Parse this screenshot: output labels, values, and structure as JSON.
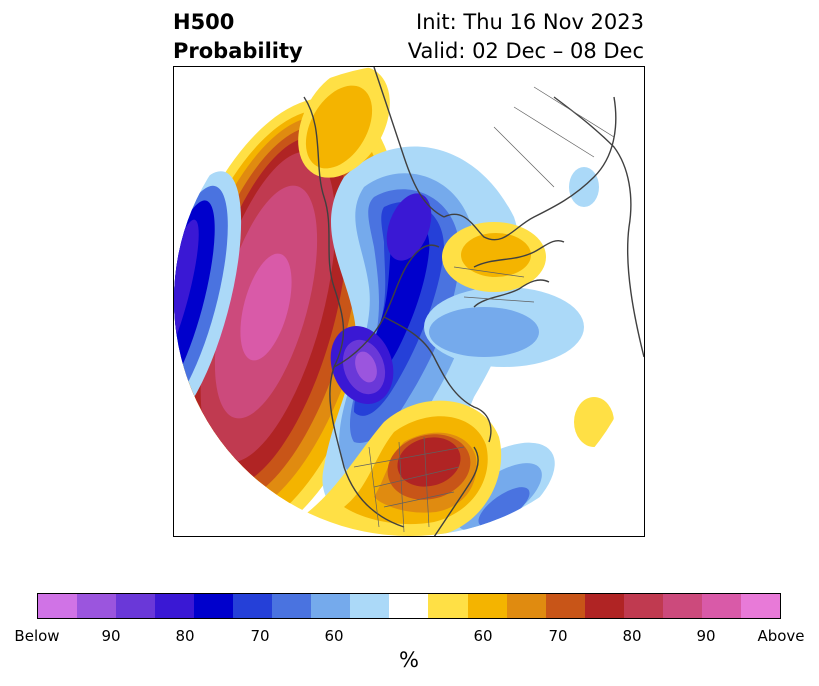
{
  "title": {
    "line1": "H500",
    "line2": "Probability"
  },
  "subtitle": {
    "init": "Init: Thu 16 Nov 2023",
    "valid": "Valid: 02 Dec – 08 Dec"
  },
  "colorbar": {
    "unit": "%",
    "colors": [
      "#d073e6",
      "#9b55de",
      "#6a38d8",
      "#3a18d4",
      "#0000cc",
      "#2540d8",
      "#4a73e0",
      "#75aaec",
      "#abd9f8",
      "#ffffff",
      "#ffe045",
      "#f4b400",
      "#e08b10",
      "#c85518",
      "#b02424",
      "#c03a50",
      "#cc4a7c",
      "#d95aa8",
      "#e87ad8"
    ],
    "tick_labels": [
      "Below",
      "90",
      "80",
      "70",
      "60",
      "60",
      "70",
      "80",
      "90",
      "Above"
    ]
  },
  "map": {
    "projection": "polar-stereographic",
    "palette": {
      "above_light": "#ffe045",
      "above_2": "#f4b400",
      "above_3": "#e08b10",
      "above_4": "#c85518",
      "above_5": "#b02424",
      "above_6": "#c03a50",
      "above_7": "#cc4a7c",
      "above_8": "#d95aa8",
      "above_9": "#e87ad8",
      "below_light": "#abd9f8",
      "below_2": "#75aaec",
      "below_3": "#4a73e0",
      "below_4": "#2540d8",
      "below_5": "#0000cc",
      "below_6": "#3a18d4",
      "below_7": "#6a38d8",
      "below_8": "#9b55de"
    }
  }
}
